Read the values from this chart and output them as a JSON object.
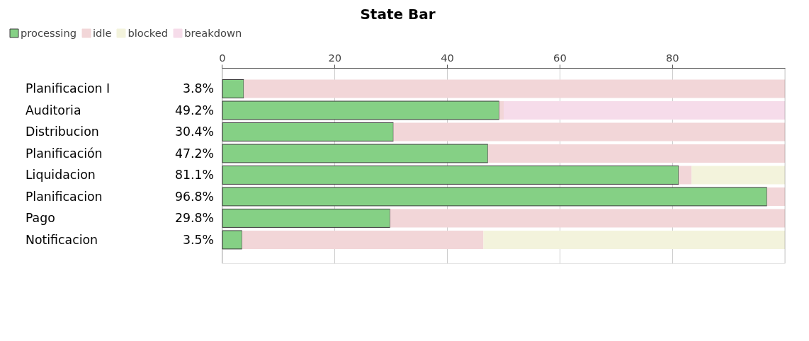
{
  "chart_data": {
    "type": "bar",
    "orientation": "horizontal",
    "stacked": true,
    "title": "State Bar",
    "categories": [
      "Planificacion I",
      "Auditoria",
      "Distribucion",
      "Planificación",
      "Liquidacion",
      "Planificacion",
      "Pago",
      "Notificacion"
    ],
    "series": [
      {
        "name": "processing",
        "color": "#85d085",
        "values": [
          3.8,
          49.2,
          30.4,
          47.2,
          81.1,
          96.8,
          29.8,
          3.5
        ],
        "value_labels": [
          "3.8%",
          "49.2%",
          "30.4%",
          "47.2%",
          "81.1%",
          "96.8%",
          "29.8%",
          "3.5%"
        ]
      },
      {
        "name": "idle",
        "color": "#f2d6d8",
        "values": [
          96.2,
          0.8,
          69.6,
          52.8,
          2.3,
          3.2,
          70.2,
          42.9
        ]
      },
      {
        "name": "blocked",
        "color": "#f3f3dc",
        "values": [
          null,
          null,
          null,
          null,
          16.6,
          null,
          null,
          53.6
        ]
      },
      {
        "name": "breakdown",
        "color": "#f6dcea",
        "values": [
          null,
          50.0,
          null,
          null,
          null,
          null,
          null,
          null
        ]
      }
    ],
    "xlim": [
      0,
      100
    ],
    "xticks": [
      0,
      20,
      40,
      60,
      80
    ],
    "grid": "x",
    "legend": "top left"
  }
}
